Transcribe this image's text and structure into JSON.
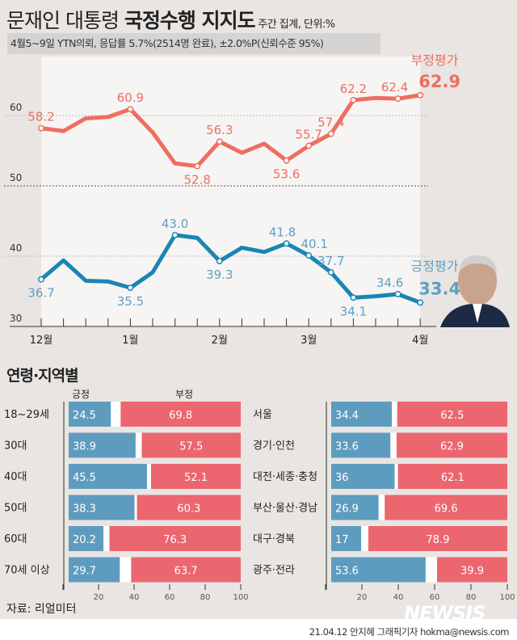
{
  "title": {
    "main_a": "문재인 대통령 ",
    "main_b": "국정수행 지지도",
    "note": " 주간 집계, 단위:%"
  },
  "subtitle": "4월5~9일 YTN의뢰, 응답률 5.7%(2514명 완료), ±2.0%P(신뢰수준 95%)",
  "colors": {
    "negative": "#ee6e5f",
    "positive": "#1a86b3",
    "bar_positive": "#5e9cbf",
    "bar_negative": "#ec6670",
    "background": "#e9e5e2"
  },
  "chart_data": [
    {
      "type": "line",
      "ylim": [
        30,
        65
      ],
      "yticks": [
        "30",
        "40",
        "50",
        "60"
      ],
      "x_month_labels": [
        "12월",
        "1월",
        "2월",
        "3월",
        "4월"
      ],
      "series": [
        {
          "name": "부정평가",
          "values": [
            58.2,
            57.8,
            59.6,
            59.8,
            60.9,
            57.6,
            53.2,
            52.8,
            56.3,
            54.7,
            56.0,
            53.6,
            55.7,
            57.4,
            62.2,
            62.5,
            62.4,
            62.9
          ],
          "labels": {
            "0": "58.2",
            "4": "60.9",
            "7": "52.8",
            "8": "56.3",
            "11": "53.6",
            "12": "55.7",
            "13": "57.4",
            "14": "62.2",
            "16": "62.4",
            "17": "62.9"
          }
        },
        {
          "name": "긍정평가",
          "values": [
            36.7,
            39.4,
            36.5,
            36.4,
            35.5,
            37.7,
            43.0,
            42.6,
            39.3,
            41.2,
            40.6,
            41.8,
            40.1,
            37.7,
            34.1,
            34.3,
            34.6,
            33.4
          ],
          "labels": {
            "0": "36.7",
            "4": "35.5",
            "6": "43.0",
            "8": "39.3",
            "11": "41.8",
            "12": "40.1",
            "13": "37.7",
            "14": "34.1",
            "16": "34.6",
            "17": "33.4"
          }
        }
      ]
    },
    {
      "type": "bar",
      "stacked": true,
      "title": "연령·지역별",
      "header": [
        "긍정",
        "부정"
      ],
      "xticks": [
        "20",
        "40",
        "60",
        "80",
        "100"
      ],
      "groups": [
        {
          "categories": [
            "18~29세",
            "30대",
            "40대",
            "50대",
            "60대",
            "70세 이상"
          ],
          "positive": [
            24.5,
            38.9,
            45.5,
            38.3,
            20.2,
            29.7
          ],
          "negative": [
            69.8,
            57.5,
            52.1,
            60.3,
            76.3,
            63.7
          ]
        },
        {
          "categories": [
            "서울",
            "경기·인천",
            "대전·세종·충청",
            "부산·울산·경남",
            "대구·경북",
            "광주·전라"
          ],
          "positive": [
            34.4,
            33.6,
            36,
            26.9,
            17,
            53.6
          ],
          "negative": [
            62.5,
            62.9,
            62.1,
            69.6,
            78.9,
            39.9
          ]
        }
      ]
    }
  ],
  "footer": {
    "source": "자료: 리얼미터",
    "credit": "21.04.12 안지혜 그래픽기자 hokma@newsis.com",
    "logo": "NEWSIS"
  }
}
